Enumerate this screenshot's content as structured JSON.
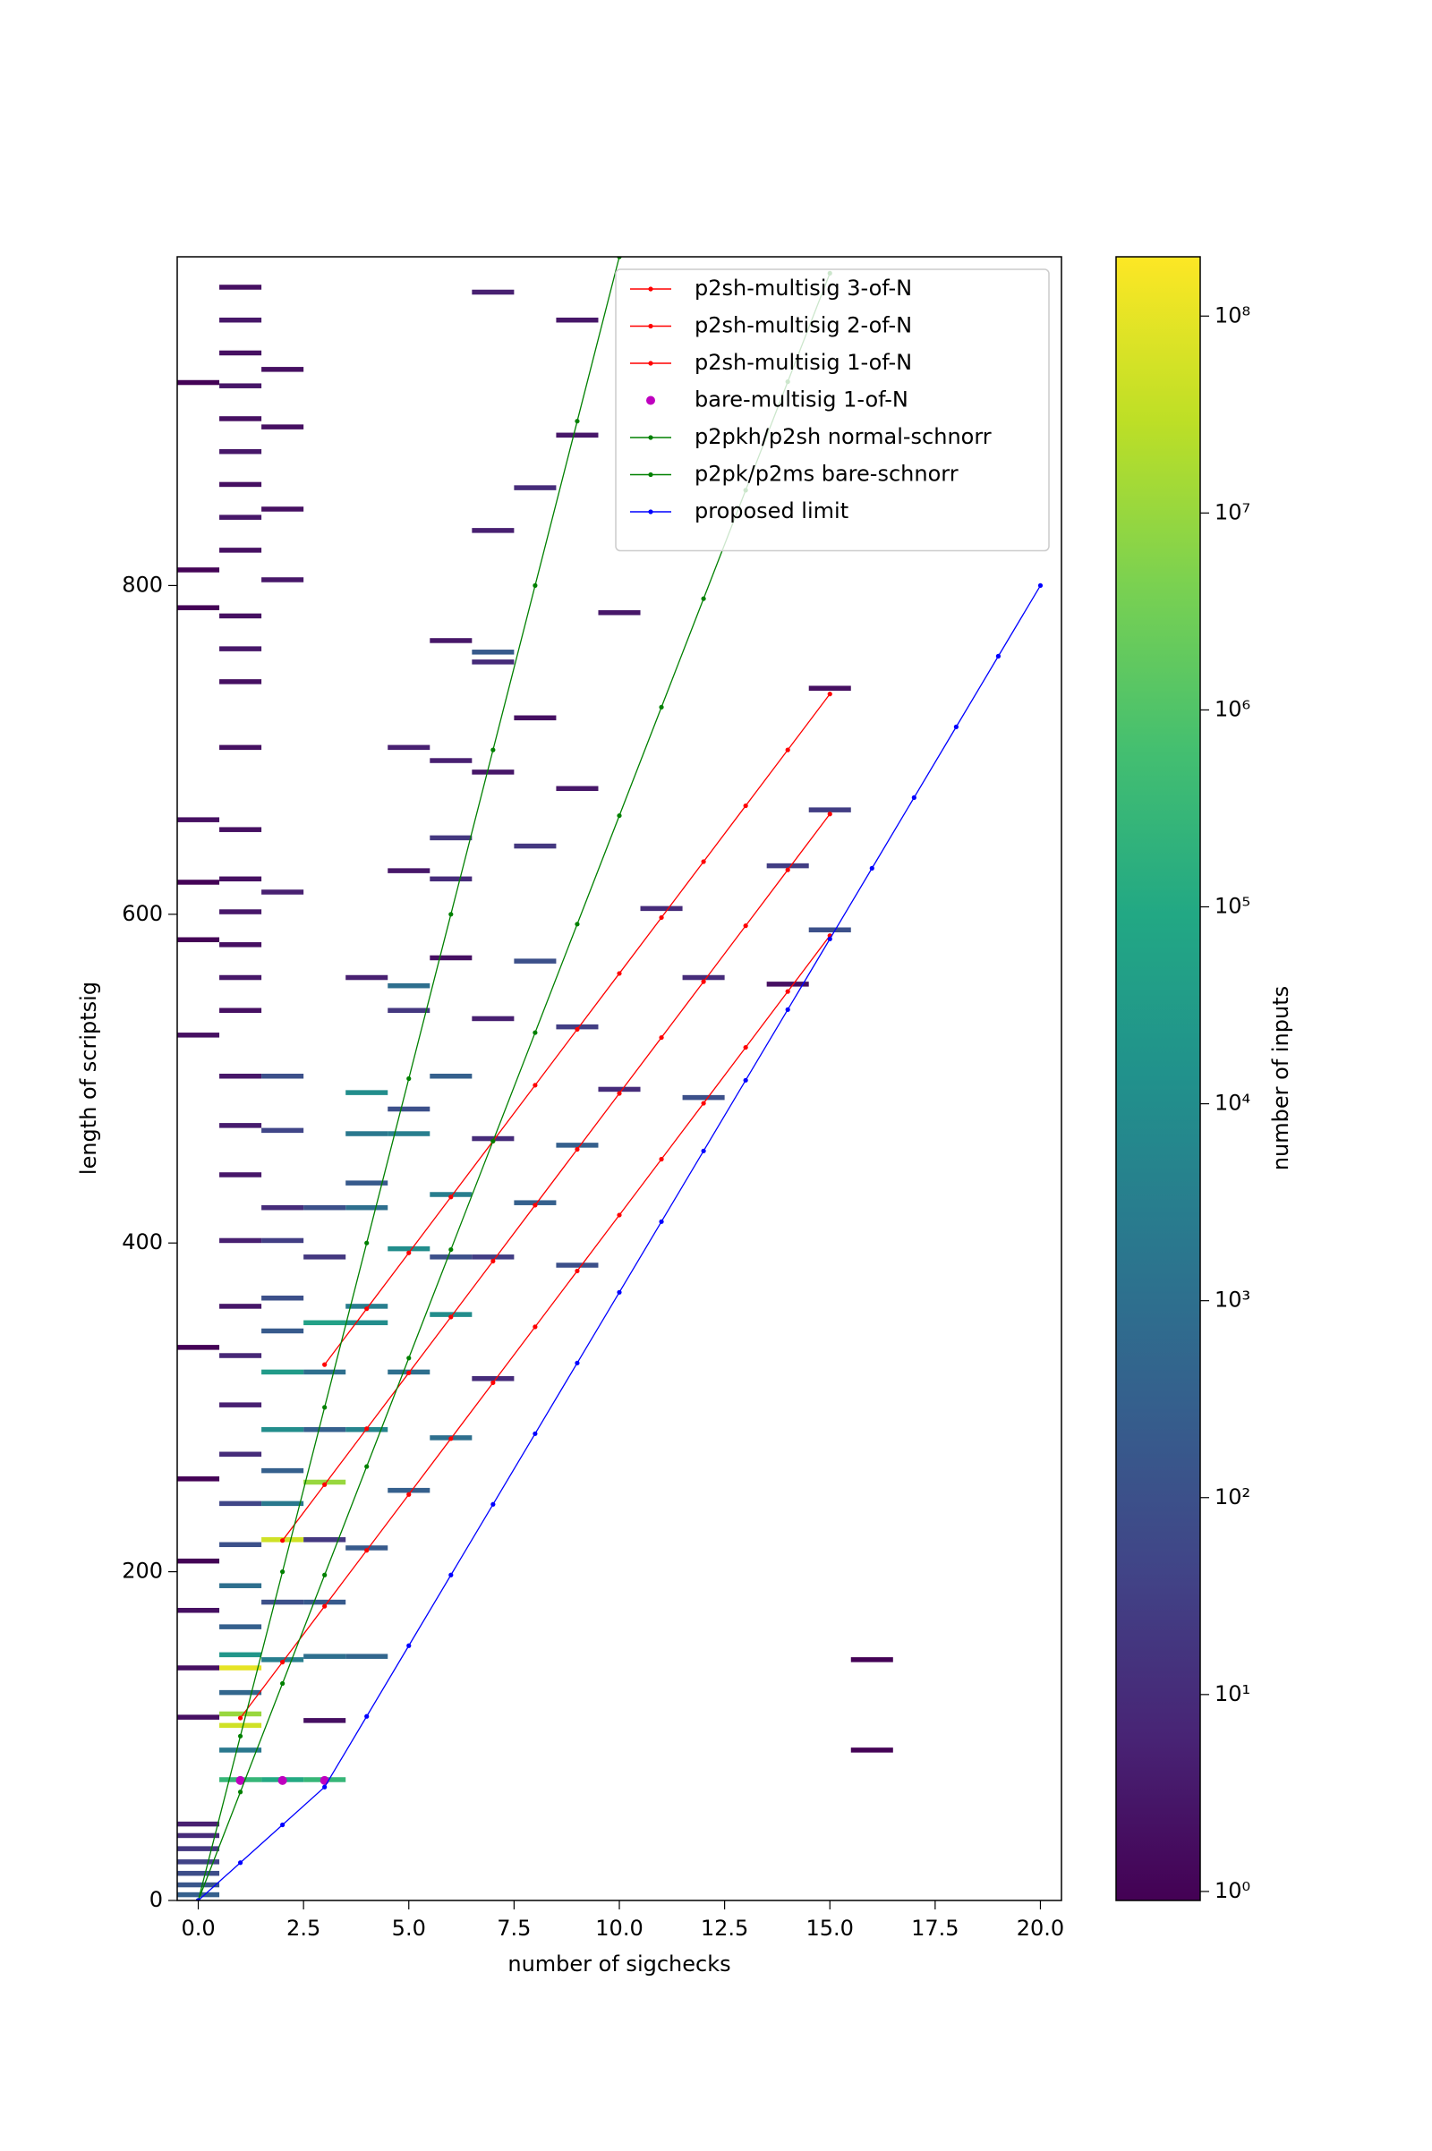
{
  "chart_data": {
    "type": "hist2d",
    "xlabel": "number of sigchecks",
    "ylabel": "length of scriptsig",
    "xlim": [
      -0.5,
      20.5
    ],
    "ylim": [
      0,
      1000
    ],
    "xticks": [
      {
        "value": 0,
        "label": "0.0"
      },
      {
        "value": 2.5,
        "label": "2.5"
      },
      {
        "value": 5,
        "label": "5.0"
      },
      {
        "value": 7.5,
        "label": "7.5"
      },
      {
        "value": 10,
        "label": "10.0"
      },
      {
        "value": 12.5,
        "label": "12.5"
      },
      {
        "value": 15,
        "label": "15.0"
      },
      {
        "value": 17.5,
        "label": "17.5"
      },
      {
        "value": 20,
        "label": "20.0"
      }
    ],
    "yticks": [
      0,
      200,
      400,
      600,
      800
    ],
    "colormap": "viridis",
    "color_scale": "log",
    "colorbar_label": "number of inputs",
    "clim": [
      0.9,
      200000000
    ],
    "cticks": [
      {
        "value": 1,
        "label": "10⁰"
      },
      {
        "value": 10,
        "label": "10¹"
      },
      {
        "value": 100,
        "label": "10²"
      },
      {
        "value": 1000,
        "label": "10³"
      },
      {
        "value": 10000,
        "label": "10⁴"
      },
      {
        "value": 100000,
        "label": "10⁵"
      },
      {
        "value": 1000000,
        "label": "10⁶"
      },
      {
        "value": 10000000,
        "label": "10⁷"
      },
      {
        "value": 100000000,
        "label": "10⁸"
      }
    ],
    "columns": [
      {
        "x": 0,
        "y": [
          2,
          8,
          15,
          22,
          30,
          38,
          45,
          110,
          140,
          175,
          205,
          255,
          335,
          525,
          583,
          618,
          656,
          785,
          808,
          922
        ],
        "values": [
          300,
          150,
          80,
          40,
          20,
          10,
          5,
          2,
          2,
          2,
          1,
          1,
          1,
          2,
          1,
          1,
          2,
          1,
          1,
          1
        ]
      },
      {
        "x": 1,
        "y": [
          72,
          90,
          105,
          112,
          125,
          140,
          148,
          165,
          190,
          215,
          240,
          270,
          300,
          330,
          360,
          400,
          440,
          470,
          500,
          540,
          580,
          620,
          650,
          700,
          740,
          780,
          820,
          860,
          900,
          940,
          980,
          560,
          600,
          760,
          840,
          880,
          920,
          960
        ],
        "values": [
          300000,
          2000,
          50000000,
          10000000,
          500,
          100000000,
          20000,
          300,
          1000,
          100,
          50,
          10,
          5,
          8,
          3,
          5,
          3,
          4,
          3,
          2,
          2,
          2,
          2,
          2,
          2,
          2,
          2,
          2,
          2,
          2,
          2,
          3,
          3,
          3,
          3,
          3,
          3,
          3
        ]
      },
      {
        "x": 2,
        "y": [
          72,
          145,
          180,
          218,
          240,
          260,
          285,
          320,
          345,
          365,
          400,
          420,
          467,
          500,
          612,
          802,
          845,
          930,
          895
        ],
        "values": [
          100000,
          3000,
          100,
          50000000,
          2000,
          300,
          10000,
          30000,
          200,
          100,
          30,
          10,
          50,
          100,
          5,
          3,
          2,
          2,
          2
        ]
      },
      {
        "x": 3,
        "y": [
          72,
          108,
          147,
          180,
          218,
          253,
          285,
          320,
          350,
          390,
          420
        ],
        "values": [
          300000,
          2,
          1000,
          200,
          20,
          10000000,
          300,
          1000,
          50000,
          20,
          100
        ]
      },
      {
        "x": 4,
        "y": [
          147,
          213,
          285,
          350,
          360,
          420,
          435,
          465,
          490,
          560
        ],
        "values": [
          500,
          200,
          5000,
          10000,
          3000,
          1000,
          200,
          2000,
          10000,
          5
        ]
      },
      {
        "x": 5,
        "y": [
          248,
          320,
          395,
          465,
          480,
          540,
          555,
          700,
          625
        ],
        "values": [
          300,
          1000,
          10000,
          3000,
          100,
          20,
          1000,
          5,
          3
        ]
      },
      {
        "x": 6,
        "y": [
          280,
          355,
          428,
          390,
          500,
          620,
          645,
          765,
          692,
          572
        ],
        "values": [
          1000,
          10000,
          3000,
          100,
          300,
          10,
          20,
          3,
          5,
          2
        ]
      },
      {
        "x": 7,
        "y": [
          316,
          390,
          462,
          535,
          685,
          758,
          752,
          977,
          832
        ],
        "values": [
          10,
          30,
          10,
          5,
          3,
          200,
          10,
          5,
          5
        ]
      },
      {
        "x": 8,
        "y": [
          423,
          570,
          640,
          858,
          718
        ],
        "values": [
          300,
          100,
          20,
          10,
          2
        ]
      },
      {
        "x": 9,
        "y": [
          385,
          458,
          530,
          675,
          890,
          960
        ],
        "values": [
          100,
          300,
          30,
          3,
          3,
          3
        ]
      },
      {
        "x": 10,
        "y": [
          492,
          782
        ],
        "values": [
          10,
          3
        ]
      },
      {
        "x": 11,
        "y": [
          602
        ],
        "values": [
          10
        ]
      },
      {
        "x": 12,
        "y": [
          487,
          560
        ],
        "values": [
          100,
          10
        ]
      },
      {
        "x": 14,
        "y": [
          628,
          556
        ],
        "values": [
          30,
          2
        ]
      },
      {
        "x": 15,
        "y": [
          589,
          662,
          736
        ],
        "values": [
          100,
          30,
          2
        ]
      },
      {
        "x": 16,
        "y": [
          90,
          145
        ],
        "values": [
          1,
          1
        ]
      }
    ],
    "legend": "upper right",
    "series": [
      {
        "name": "p2sh-multisig 3-of-N",
        "color": "#ff0000",
        "style": "line",
        "x": [
          3,
          4,
          5,
          6,
          7,
          8,
          9,
          10,
          11,
          12,
          13,
          14,
          15
        ],
        "values": [
          326,
          360,
          394,
          428,
          462,
          496,
          530,
          564,
          598,
          632,
          666,
          700,
          734
        ]
      },
      {
        "name": "p2sh-multisig 2-of-N",
        "color": "#ff0000",
        "style": "line",
        "x": [
          2,
          3,
          4,
          5,
          6,
          7,
          8,
          9,
          10,
          11,
          12,
          13,
          14,
          15
        ],
        "values": [
          219,
          253,
          287,
          321,
          355,
          389,
          423,
          457,
          491,
          525,
          559,
          593,
          627,
          661
        ]
      },
      {
        "name": "p2sh-multisig 1-of-N",
        "color": "#ff0000",
        "style": "line",
        "x": [
          1,
          2,
          3,
          4,
          5,
          6,
          7,
          8,
          9,
          10,
          11,
          12,
          13,
          14,
          15
        ],
        "values": [
          111,
          145,
          179,
          213,
          247,
          281,
          315,
          349,
          383,
          417,
          451,
          485,
          519,
          553,
          587
        ]
      },
      {
        "name": "bare-multisig 1-of-N",
        "color": "#bf00bf",
        "style": "points",
        "x": [
          1,
          2,
          3
        ],
        "values": [
          73,
          73,
          73
        ]
      },
      {
        "name": "p2pkh/p2sh normal-schnorr",
        "color": "#008000",
        "style": "line",
        "x": [
          0,
          1,
          2,
          3,
          4,
          5,
          6,
          7,
          8,
          9,
          10
        ],
        "values": [
          0,
          100,
          200,
          300,
          400,
          500,
          600,
          700,
          800,
          900,
          1000
        ]
      },
      {
        "name": "p2pk/p2ms bare-schnorr",
        "color": "#008000",
        "style": "line",
        "x": [
          0,
          1,
          2,
          3,
          4,
          5,
          6,
          7,
          8,
          9,
          10,
          11,
          12,
          13,
          14,
          15
        ],
        "values": [
          0,
          66,
          132,
          198,
          264,
          330,
          396,
          462,
          528,
          594,
          660,
          726,
          792,
          858,
          924,
          990
        ]
      },
      {
        "name": "proposed limit",
        "color": "#0000ff",
        "style": "line",
        "x": [
          0,
          1,
          2,
          3,
          4,
          5,
          6,
          7,
          8,
          9,
          10,
          11,
          12,
          13,
          14,
          15,
          16,
          17,
          18,
          19,
          20
        ],
        "values": [
          0,
          23,
          46,
          69,
          112,
          155,
          198,
          241,
          284,
          327,
          370,
          413,
          456,
          499,
          542,
          585,
          628,
          671,
          714,
          757,
          800
        ]
      }
    ]
  }
}
